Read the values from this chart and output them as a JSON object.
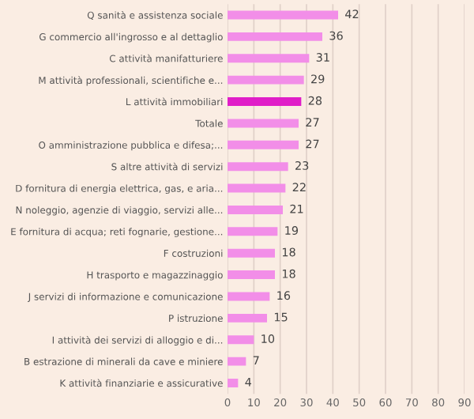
{
  "chart_data": {
    "type": "bar",
    "orientation": "horizontal",
    "categories": [
      "Q sanità e assistenza sociale",
      "G commercio all'ingrosso e al dettaglio",
      "C attività manifatturiere",
      "M attività professionali, scientifiche e...",
      "L attività immobiliari",
      "Totale",
      "O amministrazione pubblica e difesa;...",
      "S altre attività di servizi",
      "D fornitura di energia elettrica, gas, e aria...",
      "N noleggio, agenzie di viaggio, servizi alle...",
      "E fornitura di acqua; reti fognarie, gestione...",
      "F costruzioni",
      "H trasporto e magazzinaggio",
      "J servizi di informazione e comunicazione",
      "P istruzione",
      "I attività dei servizi di alloggio e di...",
      "B estrazione di minerali da cave e miniere",
      "K attività finanziarie e assicurative"
    ],
    "values": [
      42,
      36,
      31,
      29,
      28,
      27,
      27,
      23,
      22,
      21,
      19,
      18,
      18,
      16,
      15,
      10,
      7,
      4
    ],
    "colors": [
      "#f28ee8",
      "#f28ee8",
      "#f28ee8",
      "#f28ee8",
      "#e01ec8",
      "#f28ee8",
      "#f28ee8",
      "#f28ee8",
      "#f28ee8",
      "#f28ee8",
      "#f28ee8",
      "#f28ee8",
      "#f28ee8",
      "#f28ee8",
      "#f28ee8",
      "#f28ee8",
      "#f28ee8",
      "#f28ee8"
    ],
    "xlim": [
      0,
      90
    ],
    "xticks": [
      0,
      10,
      20,
      30,
      40,
      50,
      60,
      70,
      80,
      90
    ],
    "grid": "x",
    "data_labels": true
  }
}
